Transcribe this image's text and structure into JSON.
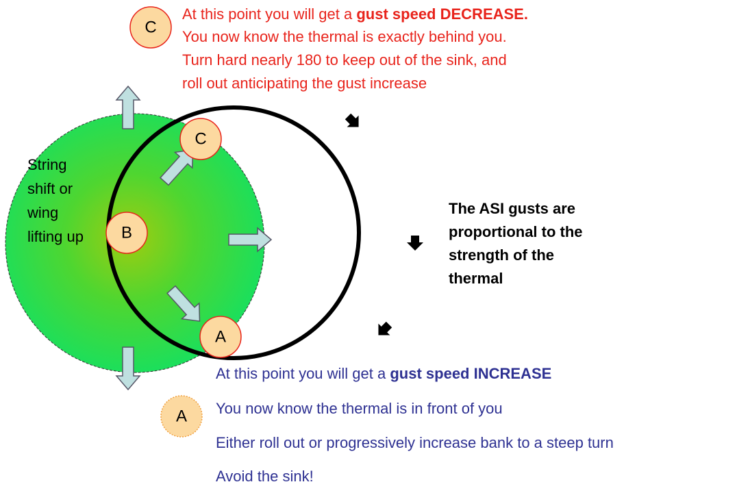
{
  "top_note": {
    "lead": "At this point you will get a ",
    "emphasis": "gust speed DECREASE.",
    "lines": [
      "You now know the thermal is exactly behind you.",
      "Turn hard nearly 180 to keep out of the sink, and",
      "roll out anticipating the gust increase"
    ]
  },
  "markers": {
    "top_callout": "C",
    "circle_c": "C",
    "circle_b": "B",
    "circle_a": "A",
    "bottom_callout": "A"
  },
  "side_note": [
    "String",
    "shift or",
    "wing",
    "lifting up"
  ],
  "asi_note": [
    "The ASI gusts are",
    "proportional to the",
    "strength of the",
    "thermal"
  ],
  "bottom_note": {
    "lead": "At this point you will get a ",
    "emphasis": "gust speed INCREASE",
    "lines": [
      "You now know the thermal is in front of you",
      "Either roll out or progressively increase bank to a steep turn",
      "Avoid the sink!"
    ]
  }
}
